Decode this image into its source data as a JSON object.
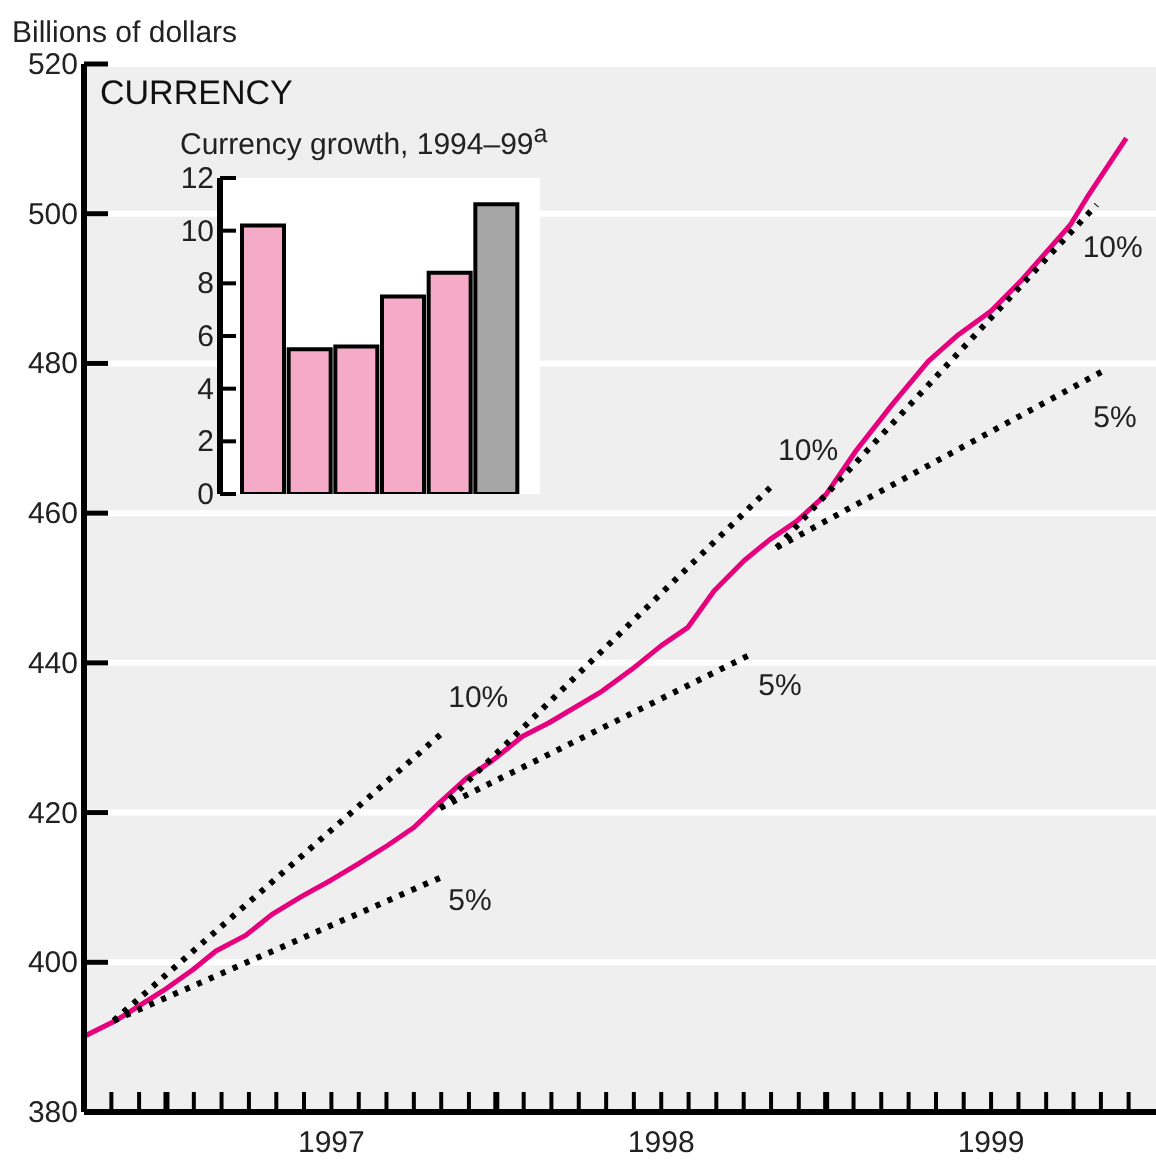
{
  "chart_data": [
    {
      "type": "line",
      "title": "CURRENCY",
      "ylabel": "Billions of dollars",
      "xlim": [
        1996.75,
        2000.0
      ],
      "ylim": [
        380,
        520
      ],
      "yticks": [
        380,
        400,
        420,
        440,
        460,
        480,
        500,
        520
      ],
      "xticks": [
        {
          "value": 1996.833,
          "label": null
        },
        {
          "value": 1996.917,
          "label": null
        },
        {
          "value": 1997,
          "label": null
        },
        {
          "value": 1997.083,
          "label": null
        },
        {
          "value": 1997.167,
          "label": null
        },
        {
          "value": 1997.25,
          "label": null
        },
        {
          "value": 1997.333,
          "label": null
        },
        {
          "value": 1997.417,
          "label": null
        },
        {
          "value": 1997.5,
          "label": "1997"
        },
        {
          "value": 1997.583,
          "label": null
        },
        {
          "value": 1997.667,
          "label": null
        },
        {
          "value": 1997.75,
          "label": null
        },
        {
          "value": 1997.833,
          "label": null
        },
        {
          "value": 1997.917,
          "label": null
        },
        {
          "value": 1998,
          "label": null
        },
        {
          "value": 1998.083,
          "label": null
        },
        {
          "value": 1998.167,
          "label": null
        },
        {
          "value": 1998.25,
          "label": null
        },
        {
          "value": 1998.333,
          "label": null
        },
        {
          "value": 1998.417,
          "label": null
        },
        {
          "value": 1998.5,
          "label": "1998"
        },
        {
          "value": 1998.583,
          "label": null
        },
        {
          "value": 1998.667,
          "label": null
        },
        {
          "value": 1998.75,
          "label": null
        },
        {
          "value": 1998.833,
          "label": null
        },
        {
          "value": 1998.917,
          "label": null
        },
        {
          "value": 1999,
          "label": null
        },
        {
          "value": 1999.083,
          "label": null
        },
        {
          "value": 1999.167,
          "label": null
        },
        {
          "value": 1999.25,
          "label": null
        },
        {
          "value": 1999.333,
          "label": null
        },
        {
          "value": 1999.417,
          "label": null
        },
        {
          "value": 1999.5,
          "label": "1999"
        },
        {
          "value": 1999.583,
          "label": null
        },
        {
          "value": 1999.667,
          "label": null
        },
        {
          "value": 1999.75,
          "label": null
        },
        {
          "value": 1999.833,
          "label": null
        },
        {
          "value": 1999.917,
          "label": null
        }
      ],
      "grid": "y",
      "line_style": "solid",
      "series": [
        {
          "color": "#e6007e",
          "x": [
            1996.75,
            1996.85,
            1996.99,
            1997.08,
            1997.15,
            1997.24,
            1997.32,
            1997.41,
            1997.5,
            1997.58,
            1997.67,
            1997.75,
            1997.83,
            1997.91,
            1997.99,
            1998.08,
            1998.16,
            1998.32,
            1998.41,
            1998.5,
            1998.58,
            1998.66,
            1998.75,
            1998.83,
            1998.91,
            1999.0,
            1999.09,
            1999.2,
            1999.31,
            1999.4,
            1999.5,
            1999.59,
            1999.66,
            1999.74,
            1999.79,
            1999.91
          ],
          "values": [
            390.1,
            392.3,
            396.2,
            399.0,
            401.5,
            403.6,
            406.4,
            408.8,
            411.0,
            413.1,
            415.6,
            418.0,
            421.4,
            424.6,
            427.0,
            430.2,
            432.0,
            436.2,
            439.1,
            442.3,
            444.7,
            449.6,
            453.6,
            456.5,
            458.9,
            462.5,
            468.3,
            474.5,
            480.3,
            483.8,
            487.0,
            491.0,
            494.5,
            498.5,
            502.1,
            510.1
          ]
        },
        {
          "type": "line",
          "color": "#000000",
          "line_style": "dotted",
          "x": [
            1996.84,
            1997.83
          ],
          "values": [
            392.2,
            430.4
          ]
        },
        {
          "type": "line",
          "color": "#000000",
          "line_style": "dotted",
          "x": [
            1996.84,
            1997.83
          ],
          "values": [
            392.2,
            411.3
          ]
        },
        {
          "type": "line",
          "color": "#000000",
          "line_style": "dotted",
          "x": [
            1997.83,
            1998.83
          ],
          "values": [
            420.6,
            463.4
          ]
        },
        {
          "type": "line",
          "color": "#000000",
          "line_style": "dotted",
          "x": [
            1997.83,
            1998.77
          ],
          "values": [
            420.6,
            441.1
          ]
        },
        {
          "type": "line",
          "color": "#000000",
          "line_style": "dotted",
          "x": [
            1998.85,
            1999.82
          ],
          "values": [
            455.4,
            501.2
          ]
        },
        {
          "type": "line",
          "color": "#000000",
          "line_style": "dotted",
          "x": [
            1998.85,
            1999.84
          ],
          "values": [
            455.4,
            479.0
          ]
        }
      ],
      "annotations": [
        {
          "text": "10%",
          "x": 1997.83,
          "y": 430.4
        },
        {
          "text": "5%",
          "x": 1997.83,
          "y": 411.3
        },
        {
          "text": "10%",
          "x": 1998.83,
          "y": 463.4
        },
        {
          "text": "5%",
          "x": 1998.77,
          "y": 441.1
        },
        {
          "text": "10%",
          "x": 1999.82,
          "y": 501.2
        },
        {
          "text": "5%",
          "x": 1999.84,
          "y": 479.0
        }
      ]
    },
    {
      "type": "bar",
      "title": "Currency growth, 1994–99$^{a}$",
      "categories": [
        null,
        null,
        null,
        null,
        null,
        null
      ],
      "values": [
        10.2,
        5.5,
        5.6,
        7.5,
        8.4,
        11.0
      ],
      "colors": [
        "#f5abc7",
        "#f5abc7",
        "#f5abc7",
        "#f5abc7",
        "#f5abc7",
        "#a6a6a6"
      ],
      "ylim": [
        0,
        12
      ],
      "yticks": [
        0,
        2,
        4,
        6,
        8,
        10,
        12
      ],
      "tick_labels": "y"
    }
  ]
}
